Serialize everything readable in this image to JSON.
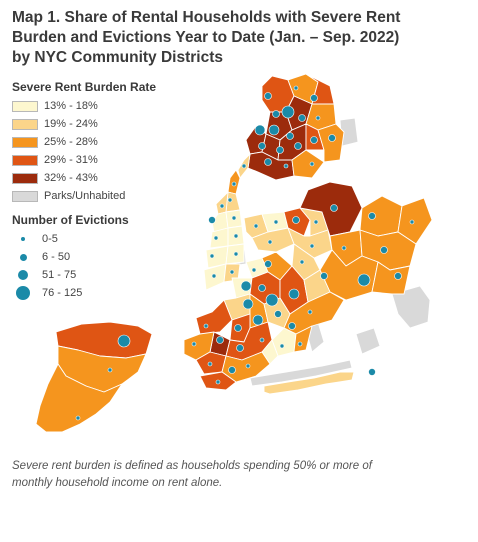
{
  "title": {
    "line1": "Map 1. Share of Rental Households with Severe Rent",
    "line2": "Burden and Evictions Year to Date (Jan. – Sep. 2022)",
    "line3": "by NYC Community Districts"
  },
  "legend_burden": {
    "title": "Severe Rent Burden Rate",
    "items": [
      {
        "label": "13% - 18%",
        "color": "#fdf7cf"
      },
      {
        "label": "19% - 24%",
        "color": "#fbd58a"
      },
      {
        "label": "25% - 28%",
        "color": "#f5951e"
      },
      {
        "label": "29% - 31%",
        "color": "#df5514"
      },
      {
        "label": "32% - 43%",
        "color": "#9c2b0c"
      },
      {
        "label": "Parks/Unhabited",
        "color": "#d9d9d9"
      }
    ]
  },
  "legend_evictions": {
    "title": "Number of Evictions",
    "items": [
      {
        "label": "0-5"
      },
      {
        "label": "6 - 50"
      },
      {
        "label": "51 - 75"
      },
      {
        "label": "76 - 125"
      }
    ]
  },
  "colors": {
    "eviction_dot": "#1b8aa8",
    "boundary": "#ffffff"
  },
  "note": {
    "line1": "Severe rent burden is defined as households spending 50% or more of",
    "line2": "monthly household income on rent alone."
  }
}
